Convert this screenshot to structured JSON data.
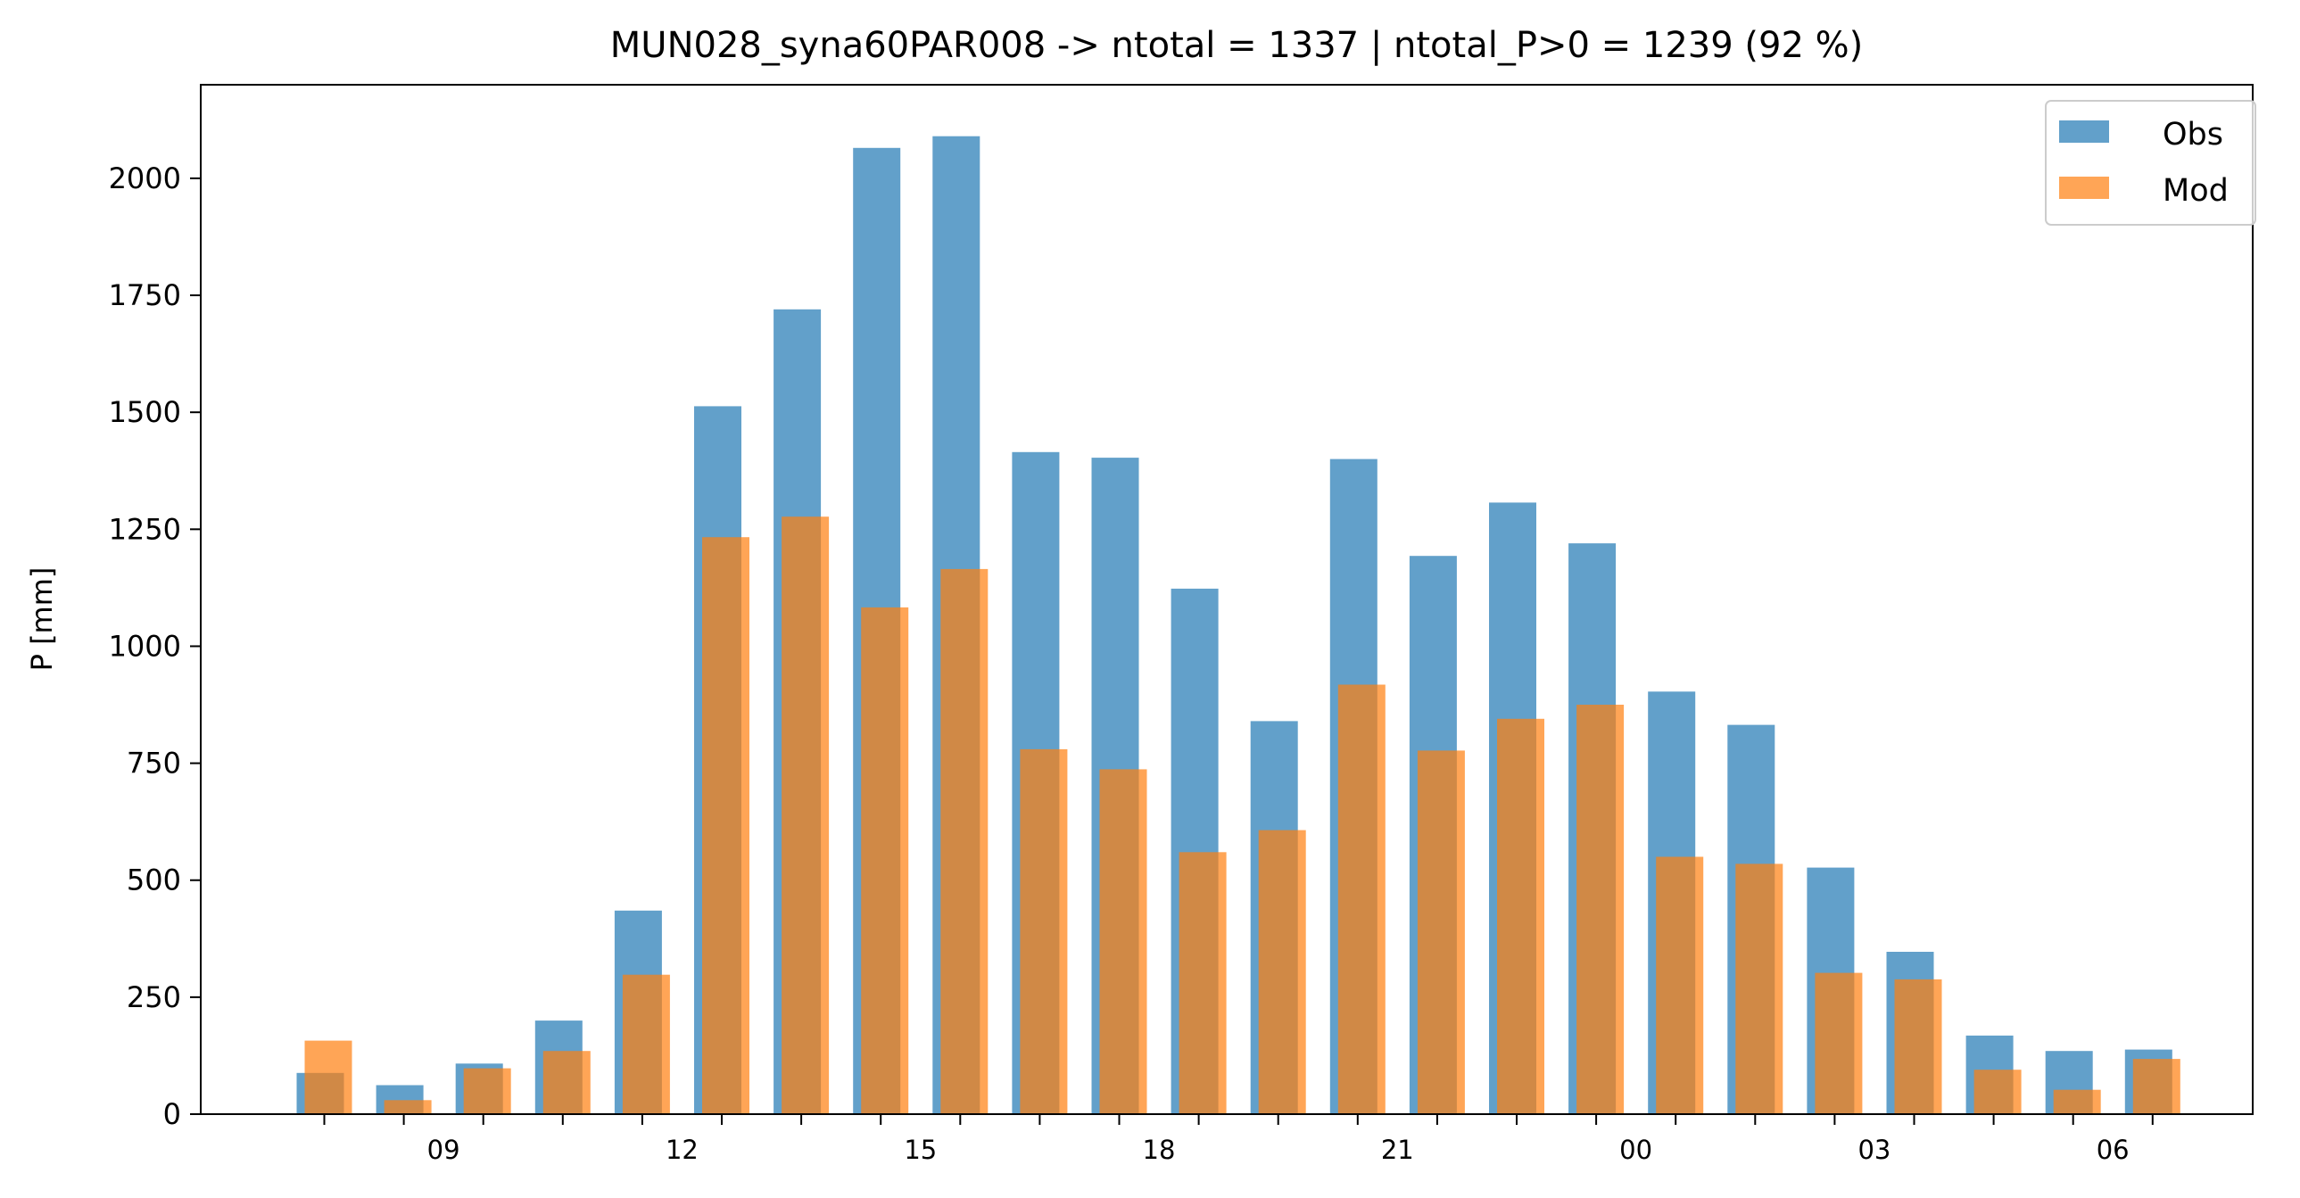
{
  "chart_data": {
    "type": "bar",
    "title": "MUN028_syna60PAR008 -> ntotal = 1337 | ntotal_P>0 = 1239 (92 %)",
    "xlabel": "",
    "ylabel": "P [mm]",
    "ylim": [
      0,
      2200
    ],
    "yticks": [
      0,
      250,
      500,
      750,
      1000,
      1250,
      1500,
      1750,
      2000
    ],
    "ytick_labels": [
      "0",
      "250",
      "500",
      "750",
      "1000",
      "1250",
      "1500",
      "1750",
      "2000"
    ],
    "hours": [
      8,
      9,
      10,
      11,
      12,
      13,
      14,
      15,
      16,
      17,
      18,
      19,
      20,
      21,
      22,
      23,
      0,
      1,
      2,
      3,
      4,
      5,
      6,
      7
    ],
    "xtick_labels": [
      "09",
      "12",
      "15",
      "18",
      "21",
      "00",
      "03",
      "06"
    ],
    "xtick_label_hours": [
      9,
      12,
      15,
      18,
      21,
      0,
      3,
      6
    ],
    "legend_position": "top-right",
    "grid": false,
    "series": [
      {
        "name": "Obs",
        "color": "#1f77b4",
        "values": [
          88,
          62,
          108,
          200,
          435,
          1513,
          1720,
          2065,
          2090,
          1415,
          1403,
          1123,
          840,
          1400,
          1193,
          1307,
          1220,
          903,
          832,
          527,
          347,
          168,
          135,
          138
        ]
      },
      {
        "name": "Mod",
        "color": "#ff7f0e",
        "values": [
          157,
          30,
          98,
          135,
          298,
          1233,
          1277,
          1083,
          1165,
          780,
          737,
          560,
          607,
          918,
          777,
          845,
          875,
          550,
          535,
          302,
          288,
          95,
          52,
          118
        ]
      }
    ]
  }
}
